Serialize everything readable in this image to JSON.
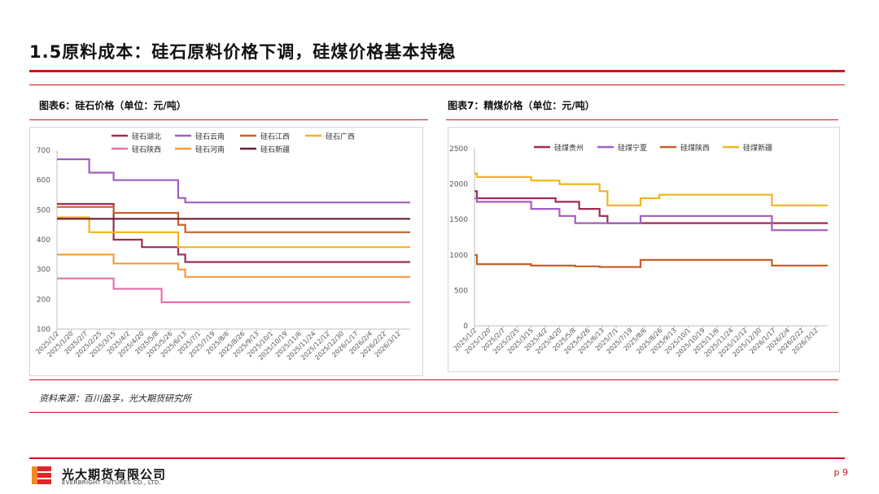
{
  "page": {
    "title": "1.5原料成本：硅石原料价格下调，硅煤价格基本持稳",
    "source": "资料来源：百川盈孚，光大期货研究所",
    "company_cn": "光大期货有限公司",
    "company_en": "EVERBRIGHT FUTURES CO., LTD.",
    "page_number": "p 9",
    "accent_color": "#c8161d"
  },
  "chart_data": [
    {
      "type": "line",
      "caption": "图表6：硅石价格（单位：元/吨）",
      "ylim": [
        100,
        700
      ],
      "yticks": [
        100,
        200,
        300,
        400,
        500,
        600,
        700
      ],
      "x_range": [
        "2025-01-02",
        "2026-03-27"
      ],
      "xtick_labels": [
        "2025/1/2",
        "2025/1/20",
        "2025/2/7",
        "2025/2/25",
        "2025/3/15",
        "2025/4/2",
        "2025/4/20",
        "2025/5/8",
        "2025/5/26",
        "2025/6/13",
        "2025/7/1",
        "2025/7/19",
        "2025/8/6",
        "2025/8/26",
        "2025/9/13",
        "2025/10/1",
        "2025/10/19",
        "2025/11/6",
        "2025/11/24",
        "2025/12/12",
        "2025/12/30",
        "2026/1/17",
        "2026/2/4",
        "2026/2/22",
        "2026/3/12"
      ],
      "legend_placement": "top",
      "series": [
        {
          "name": "硅石湖北",
          "color": "#9e2b5a",
          "points": [
            [
              "2025-01-02",
              520
            ],
            [
              "2025-03-15",
              520
            ],
            [
              "2025-03-15",
              400
            ],
            [
              "2025-04-20",
              400
            ],
            [
              "2025-04-20",
              375
            ],
            [
              "2025-06-05",
              375
            ],
            [
              "2025-06-05",
              350
            ],
            [
              "2025-06-14",
              350
            ],
            [
              "2025-06-14",
              325
            ],
            [
              "2026-03-27",
              325
            ]
          ]
        },
        {
          "name": "硅石云南",
          "color": "#a45cc0",
          "points": [
            [
              "2025-01-02",
              670
            ],
            [
              "2025-02-12",
              670
            ],
            [
              "2025-02-12",
              625
            ],
            [
              "2025-03-15",
              625
            ],
            [
              "2025-03-15",
              600
            ],
            [
              "2025-06-05",
              600
            ],
            [
              "2025-06-05",
              540
            ],
            [
              "2025-06-14",
              540
            ],
            [
              "2025-06-14",
              525
            ],
            [
              "2026-03-27",
              525
            ]
          ]
        },
        {
          "name": "硅石江西",
          "color": "#c8602a",
          "points": [
            [
              "2025-01-02",
              510
            ],
            [
              "2025-03-15",
              510
            ],
            [
              "2025-03-15",
              490
            ],
            [
              "2025-06-05",
              490
            ],
            [
              "2025-06-05",
              450
            ],
            [
              "2025-06-14",
              450
            ],
            [
              "2025-06-14",
              425
            ],
            [
              "2026-03-27",
              425
            ]
          ]
        },
        {
          "name": "硅石广西",
          "color": "#f0b41e",
          "points": [
            [
              "2025-01-02",
              475
            ],
            [
              "2025-02-12",
              475
            ],
            [
              "2025-02-12",
              425
            ],
            [
              "2025-06-05",
              425
            ],
            [
              "2025-06-05",
              375
            ],
            [
              "2026-03-27",
              375
            ]
          ]
        },
        {
          "name": "硅石陕西",
          "color": "#e173a8",
          "points": [
            [
              "2025-01-02",
              270
            ],
            [
              "2025-03-15",
              270
            ],
            [
              "2025-03-15",
              235
            ],
            [
              "2025-05-15",
              235
            ],
            [
              "2025-05-15",
              190
            ],
            [
              "2026-03-27",
              190
            ]
          ]
        },
        {
          "name": "硅石河南",
          "color": "#f39a3c",
          "points": [
            [
              "2025-01-02",
              350
            ],
            [
              "2025-03-15",
              350
            ],
            [
              "2025-03-15",
              320
            ],
            [
              "2025-06-05",
              320
            ],
            [
              "2025-06-05",
              300
            ],
            [
              "2025-06-14",
              300
            ],
            [
              "2025-06-14",
              275
            ],
            [
              "2026-03-27",
              275
            ]
          ]
        },
        {
          "name": "硅石新疆",
          "color": "#6e1e32",
          "points": [
            [
              "2025-01-02",
              470
            ],
            [
              "2026-03-27",
              470
            ]
          ]
        }
      ]
    },
    {
      "type": "line",
      "caption": "图表7：精煤价格（单位：元/吨）",
      "ylim": [
        0,
        2500
      ],
      "yticks": [
        0,
        500,
        1000,
        1500,
        2000,
        2500
      ],
      "x_range": [
        "2025-01-02",
        "2026-03-27"
      ],
      "xtick_labels": [
        "2025/1/2",
        "2025/1/20",
        "2025/2/7",
        "2025/2/25",
        "2025/3/15",
        "2025/4/2",
        "2025/4/20",
        "2025/5/8",
        "2025/5/26",
        "2025/6/13",
        "2025/7/1",
        "2025/7/19",
        "2025/8/6",
        "2025/8/26",
        "2025/9/13",
        "2025/10/1",
        "2025/10/19",
        "2025/11/6",
        "2025/11/24",
        "2025/12/12",
        "2025/12/30",
        "2026/1/17",
        "2026/2/4",
        "2026/2/22",
        "2026/3/12"
      ],
      "legend_placement": "top",
      "series": [
        {
          "name": "硅煤贵州",
          "color": "#9e2b5a",
          "points": [
            [
              "2025-01-02",
              1900
            ],
            [
              "2025-01-05",
              1900
            ],
            [
              "2025-01-05",
              1800
            ],
            [
              "2025-04-15",
              1800
            ],
            [
              "2025-04-15",
              1750
            ],
            [
              "2025-05-15",
              1750
            ],
            [
              "2025-05-15",
              1650
            ],
            [
              "2025-06-10",
              1650
            ],
            [
              "2025-06-10",
              1550
            ],
            [
              "2025-06-20",
              1550
            ],
            [
              "2025-06-20",
              1450
            ],
            [
              "2026-03-27",
              1450
            ]
          ]
        },
        {
          "name": "硅煤宁夏",
          "color": "#a45cc0",
          "points": [
            [
              "2025-01-02",
              1800
            ],
            [
              "2025-01-05",
              1800
            ],
            [
              "2025-01-05",
              1750
            ],
            [
              "2025-03-15",
              1750
            ],
            [
              "2025-03-15",
              1650
            ],
            [
              "2025-04-20",
              1650
            ],
            [
              "2025-04-20",
              1550
            ],
            [
              "2025-05-10",
              1550
            ],
            [
              "2025-05-10",
              1450
            ],
            [
              "2025-08-01",
              1450
            ],
            [
              "2025-08-01",
              1550
            ],
            [
              "2026-01-15",
              1550
            ],
            [
              "2026-01-15",
              1350
            ],
            [
              "2026-03-27",
              1350
            ]
          ]
        },
        {
          "name": "硅煤陕西",
          "color": "#c8602a",
          "points": [
            [
              "2025-01-02",
              1000
            ],
            [
              "2025-01-05",
              1000
            ],
            [
              "2025-01-05",
              870
            ],
            [
              "2025-03-15",
              870
            ],
            [
              "2025-03-15",
              850
            ],
            [
              "2025-05-10",
              850
            ],
            [
              "2025-05-10",
              840
            ],
            [
              "2025-06-10",
              840
            ],
            [
              "2025-06-10",
              830
            ],
            [
              "2025-08-01",
              830
            ],
            [
              "2025-08-01",
              930
            ],
            [
              "2026-01-15",
              930
            ],
            [
              "2026-01-15",
              850
            ],
            [
              "2026-03-27",
              850
            ]
          ]
        },
        {
          "name": "硅煤新疆",
          "color": "#f0b41e",
          "points": [
            [
              "2025-01-02",
              2150
            ],
            [
              "2025-01-05",
              2150
            ],
            [
              "2025-01-05",
              2100
            ],
            [
              "2025-03-15",
              2100
            ],
            [
              "2025-03-15",
              2050
            ],
            [
              "2025-04-20",
              2050
            ],
            [
              "2025-04-20",
              2000
            ],
            [
              "2025-06-10",
              2000
            ],
            [
              "2025-06-10",
              1900
            ],
            [
              "2025-06-20",
              1900
            ],
            [
              "2025-06-20",
              1700
            ],
            [
              "2025-08-01",
              1700
            ],
            [
              "2025-08-01",
              1800
            ],
            [
              "2025-08-25",
              1800
            ],
            [
              "2025-08-25",
              1850
            ],
            [
              "2026-01-15",
              1850
            ],
            [
              "2026-01-15",
              1700
            ],
            [
              "2026-03-27",
              1700
            ]
          ]
        }
      ]
    }
  ]
}
